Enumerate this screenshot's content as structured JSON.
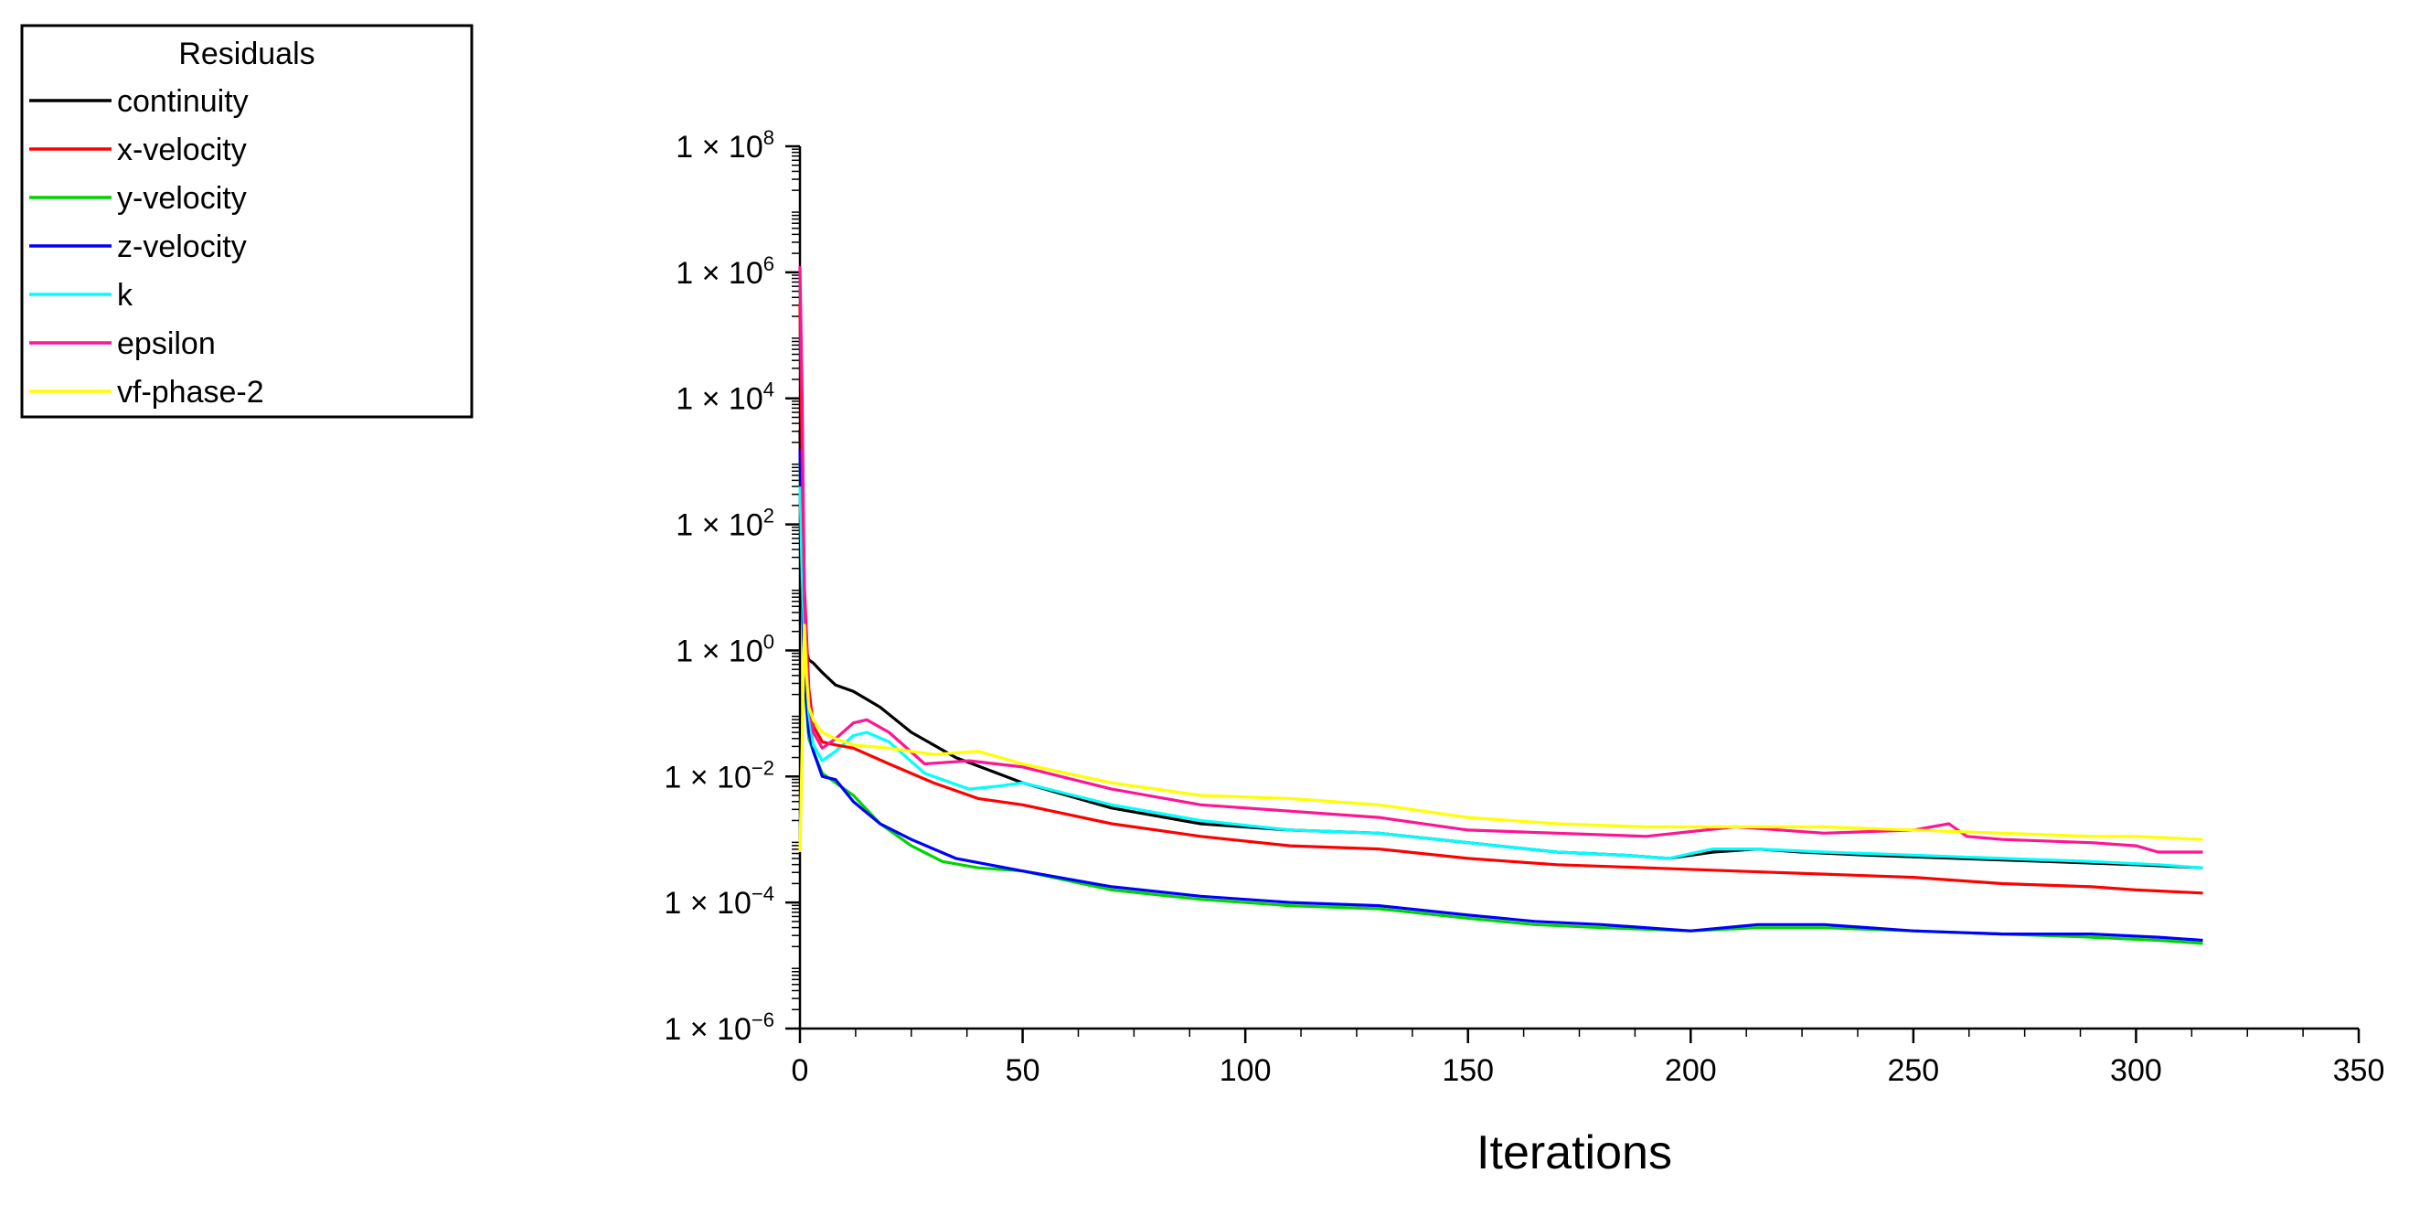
{
  "chart_data": {
    "type": "line",
    "title": "",
    "xlabel": "Iterations",
    "ylabel": "",
    "yscale": "log",
    "xlim": [
      0,
      350
    ],
    "ylim_exp": [
      -6,
      8
    ],
    "x_ticks": [
      0,
      50,
      100,
      150,
      200,
      250,
      300,
      350
    ],
    "x_tick_labels": [
      "0",
      "50",
      "100",
      "150",
      "200",
      "250",
      "300",
      "350"
    ],
    "y_tick_exponents": [
      -6,
      -4,
      -2,
      0,
      2,
      4,
      6,
      8
    ],
    "y_tick_prefix": "1 × 10",
    "legend": {
      "title": "Residuals",
      "position": "top-left"
    },
    "series": [
      {
        "name": "continuity",
        "color": "#000000",
        "x": [
          0,
          0.5,
          1,
          2,
          3,
          5,
          8,
          12,
          18,
          25,
          35,
          50,
          70,
          90,
          110,
          130,
          150,
          170,
          185,
          195,
          205,
          215,
          225,
          240,
          260,
          280,
          300,
          315
        ],
        "logy": [
          3.5,
          1.2,
          0.1,
          -0.15,
          -0.2,
          -0.35,
          -0.55,
          -0.65,
          -0.9,
          -1.3,
          -1.7,
          -2.1,
          -2.5,
          -2.75,
          -2.85,
          -2.9,
          -3.05,
          -3.2,
          -3.25,
          -3.3,
          -3.2,
          -3.15,
          -3.2,
          -3.25,
          -3.3,
          -3.35,
          -3.4,
          -3.45
        ]
      },
      {
        "name": "x-velocity",
        "color": "#ff0000",
        "x": [
          0,
          0.5,
          1,
          2,
          3,
          5,
          8,
          12,
          20,
          30,
          40,
          50,
          70,
          90,
          110,
          130,
          150,
          170,
          190,
          210,
          230,
          250,
          270,
          290,
          300,
          315
        ],
        "logy": [
          5.5,
          3.0,
          1.0,
          -0.6,
          -1.2,
          -1.45,
          -1.5,
          -1.55,
          -1.8,
          -2.1,
          -2.35,
          -2.45,
          -2.75,
          -2.95,
          -3.1,
          -3.15,
          -3.3,
          -3.4,
          -3.45,
          -3.5,
          -3.55,
          -3.6,
          -3.7,
          -3.75,
          -3.8,
          -3.85
        ]
      },
      {
        "name": "y-velocity",
        "color": "#00d400",
        "x": [
          0,
          0.5,
          1,
          2,
          3,
          5,
          8,
          12,
          18,
          25,
          32,
          40,
          50,
          70,
          90,
          110,
          130,
          150,
          165,
          180,
          200,
          215,
          230,
          250,
          270,
          290,
          305,
          315
        ],
        "logy": [
          3.0,
          1.0,
          -0.5,
          -1.4,
          -1.6,
          -1.95,
          -2.1,
          -2.3,
          -2.75,
          -3.1,
          -3.35,
          -3.45,
          -3.5,
          -3.8,
          -3.95,
          -4.05,
          -4.1,
          -4.25,
          -4.35,
          -4.4,
          -4.45,
          -4.4,
          -4.4,
          -4.45,
          -4.5,
          -4.55,
          -4.6,
          -4.65
        ]
      },
      {
        "name": "z-velocity",
        "color": "#0000ff",
        "x": [
          0,
          0.5,
          1,
          2,
          3,
          5,
          8,
          12,
          18,
          25,
          35,
          50,
          70,
          90,
          110,
          130,
          150,
          165,
          180,
          200,
          215,
          230,
          250,
          270,
          290,
          305,
          315
        ],
        "logy": [
          3.2,
          1.1,
          -0.4,
          -1.3,
          -1.6,
          -2.0,
          -2.05,
          -2.4,
          -2.75,
          -3.0,
          -3.3,
          -3.5,
          -3.75,
          -3.9,
          -4.0,
          -4.05,
          -4.2,
          -4.3,
          -4.35,
          -4.45,
          -4.35,
          -4.35,
          -4.45,
          -4.5,
          -4.5,
          -4.55,
          -4.6
        ]
      },
      {
        "name": "k",
        "color": "#00ffff",
        "x": [
          0,
          0.5,
          1,
          2,
          3,
          5,
          8,
          12,
          15,
          20,
          28,
          38,
          45,
          50,
          70,
          90,
          110,
          130,
          150,
          170,
          185,
          195,
          205,
          215,
          230,
          250,
          270,
          290,
          305,
          315
        ],
        "logy": [
          2.6,
          1.2,
          0.2,
          -1.0,
          -1.5,
          -1.75,
          -1.6,
          -1.35,
          -1.3,
          -1.45,
          -1.95,
          -2.2,
          -2.15,
          -2.1,
          -2.45,
          -2.7,
          -2.85,
          -2.9,
          -3.05,
          -3.2,
          -3.25,
          -3.3,
          -3.15,
          -3.15,
          -3.2,
          -3.25,
          -3.3,
          -3.35,
          -3.4,
          -3.45
        ]
      },
      {
        "name": "epsilon",
        "color": "#ff1493",
        "x": [
          0,
          0.5,
          1,
          2,
          3,
          5,
          8,
          12,
          15,
          20,
          28,
          38,
          50,
          70,
          90,
          110,
          130,
          150,
          170,
          190,
          210,
          230,
          250,
          258,
          262,
          270,
          290,
          300,
          305,
          315
        ],
        "logy": [
          6.1,
          4.0,
          0.8,
          -0.8,
          -1.3,
          -1.55,
          -1.4,
          -1.15,
          -1.1,
          -1.3,
          -1.8,
          -1.75,
          -1.85,
          -2.2,
          -2.45,
          -2.55,
          -2.65,
          -2.85,
          -2.9,
          -2.95,
          -2.8,
          -2.9,
          -2.85,
          -2.75,
          -2.95,
          -3.0,
          -3.05,
          -3.1,
          -3.2,
          -3.2
        ]
      },
      {
        "name": "vf-phase-2",
        "color": "#ffff00",
        "x": [
          0,
          0.5,
          1,
          1.5,
          2,
          3,
          5,
          8,
          12,
          20,
          30,
          40,
          50,
          70,
          90,
          110,
          130,
          150,
          170,
          190,
          210,
          230,
          250,
          270,
          290,
          300,
          315
        ],
        "logy": [
          -3.2,
          -1.5,
          0.4,
          -0.4,
          -0.9,
          -1.1,
          -1.3,
          -1.4,
          -1.5,
          -1.55,
          -1.65,
          -1.6,
          -1.8,
          -2.1,
          -2.3,
          -2.35,
          -2.45,
          -2.65,
          -2.75,
          -2.8,
          -2.8,
          -2.8,
          -2.85,
          -2.9,
          -2.95,
          -2.95,
          -3.0
        ]
      }
    ]
  }
}
